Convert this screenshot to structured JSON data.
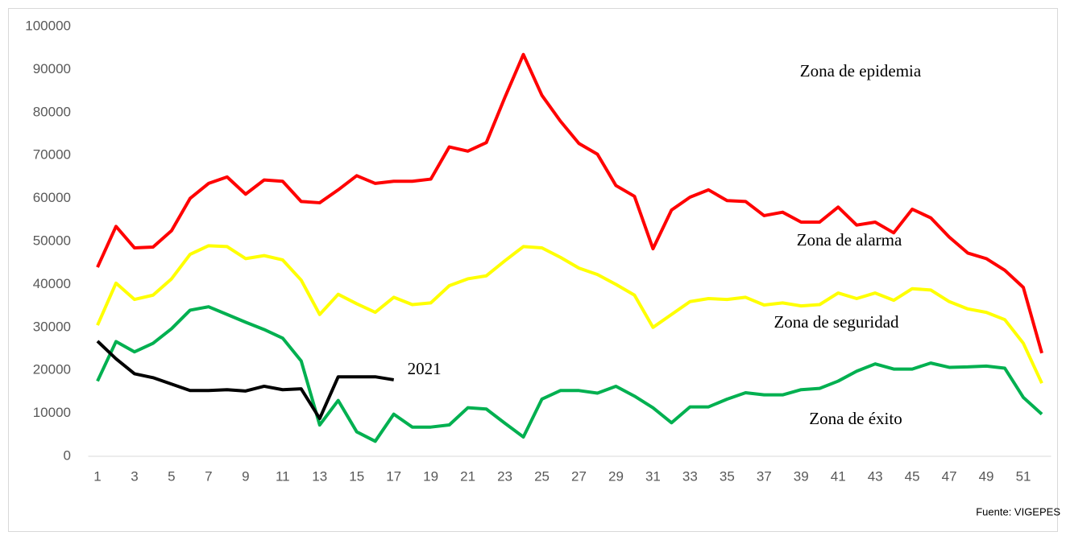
{
  "chart_data": {
    "type": "line",
    "x": [
      1,
      2,
      3,
      4,
      5,
      6,
      7,
      8,
      9,
      10,
      11,
      12,
      13,
      14,
      15,
      16,
      17,
      18,
      19,
      20,
      21,
      22,
      23,
      24,
      25,
      26,
      27,
      28,
      29,
      30,
      31,
      32,
      33,
      34,
      35,
      36,
      37,
      38,
      39,
      40,
      41,
      42,
      43,
      44,
      45,
      46,
      47,
      48,
      49,
      50,
      51,
      52
    ],
    "xlim": [
      0.5,
      52.5
    ],
    "xticks": [
      1,
      3,
      5,
      7,
      9,
      11,
      13,
      15,
      17,
      19,
      21,
      23,
      25,
      27,
      29,
      31,
      33,
      35,
      37,
      39,
      41,
      43,
      45,
      47,
      49,
      51
    ],
    "ylim": [
      0,
      100000
    ],
    "yticks": [
      0,
      10000,
      20000,
      30000,
      40000,
      50000,
      60000,
      70000,
      80000,
      90000,
      100000
    ],
    "grid": false,
    "series": [
      {
        "color": "#ff0000",
        "values": [
          44000,
          53500,
          48500,
          48700,
          52500,
          60000,
          63500,
          65000,
          61000,
          64300,
          64000,
          59300,
          59000,
          62000,
          65300,
          63500,
          64000,
          64000,
          64500,
          72000,
          71000,
          73000,
          83500,
          93500,
          84000,
          78000,
          72800,
          70300,
          63000,
          60500,
          48300,
          57300,
          60300,
          62000,
          59500,
          59300,
          56000,
          56800,
          54500,
          54500,
          58000,
          53800,
          54500,
          52000,
          57500,
          55500,
          51000,
          47300,
          46000,
          43300,
          39300,
          24000
        ]
      },
      {
        "color": "#ffff00",
        "values": [
          30500,
          40300,
          36500,
          37500,
          41300,
          47000,
          49000,
          48800,
          46000,
          46700,
          45700,
          41000,
          33000,
          37700,
          35500,
          33500,
          37000,
          35300,
          35700,
          39700,
          41300,
          42000,
          45500,
          48800,
          48500,
          46300,
          43800,
          42300,
          40000,
          37500,
          30000,
          33000,
          36000,
          36700,
          36500,
          37000,
          35200,
          35700,
          35000,
          35300,
          38000,
          36700,
          38000,
          36300,
          39000,
          38700,
          36000,
          34300,
          33500,
          31800,
          26300,
          17000
        ]
      },
      {
        "color": "#00b050",
        "values": [
          17500,
          26700,
          24300,
          26300,
          29700,
          34000,
          34800,
          33000,
          31200,
          29500,
          27500,
          22200,
          7300,
          13000,
          5700,
          3500,
          9800,
          6800,
          6800,
          7300,
          11300,
          11000,
          7700,
          4500,
          13300,
          15300,
          15300,
          14700,
          16300,
          14000,
          11300,
          7800,
          11500,
          11500,
          13300,
          14800,
          14300,
          14300,
          15500,
          15800,
          17500,
          19800,
          21500,
          20300,
          20300,
          21700,
          20700,
          20800,
          21000,
          20500,
          13700,
          9800
        ]
      },
      {
        "name": "2021",
        "color": "#000000",
        "values": [
          26800,
          22700,
          19200,
          18300,
          16800,
          15300,
          15300,
          15500,
          15200,
          16300,
          15500,
          15700,
          8800,
          18500,
          18500,
          18500,
          17800,
          null,
          null,
          null,
          null,
          null,
          null,
          null,
          null,
          null,
          null,
          null,
          null,
          null,
          null,
          null,
          null,
          null,
          null,
          null,
          null,
          null,
          null,
          null,
          null,
          null,
          null,
          null,
          null,
          null,
          null,
          null,
          null,
          null,
          null,
          null
        ]
      }
    ],
    "annotations": [
      "Zona de epidemia",
      "Zona de alarma",
      "Zona de seguridad",
      "Zona de éxito"
    ],
    "source": "Fuente: VIGEPES"
  }
}
